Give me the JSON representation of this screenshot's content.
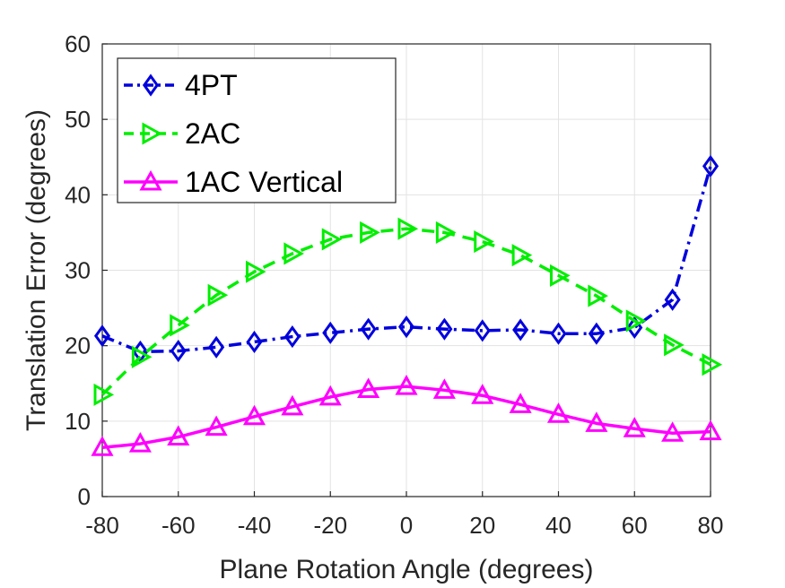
{
  "chart_data": {
    "type": "line",
    "xlabel": "Plane Rotation Angle (degrees)",
    "ylabel": "Translation Error (degrees)",
    "xlim": [
      -80,
      80
    ],
    "ylim": [
      0,
      60
    ],
    "x_ticks": [
      -80,
      -60,
      -40,
      -20,
      0,
      20,
      40,
      60,
      80
    ],
    "y_ticks": [
      0,
      10,
      20,
      30,
      40,
      50,
      60
    ],
    "grid": true,
    "legend_position": "top-left",
    "x": [
      -80,
      -70,
      -60,
      -50,
      -40,
      -30,
      -20,
      -10,
      0,
      10,
      20,
      30,
      40,
      50,
      60,
      70,
      80
    ],
    "series": [
      {
        "name": "4PT",
        "color": "#0000dd",
        "line_style": "dash-dot",
        "marker": "diamond",
        "values": [
          21.3,
          19.2,
          19.3,
          19.8,
          20.5,
          21.2,
          21.7,
          22.2,
          22.5,
          22.2,
          22.0,
          22.1,
          21.6,
          21.6,
          22.4,
          26.1,
          43.8
        ]
      },
      {
        "name": "2AC",
        "color": "#00ee00",
        "line_style": "dashed",
        "marker": "triangle-right",
        "values": [
          13.5,
          18.5,
          22.7,
          26.7,
          29.8,
          32.2,
          34.1,
          35.0,
          35.5,
          35.0,
          33.8,
          32.0,
          29.3,
          26.6,
          23.3,
          20.1,
          17.5
        ]
      },
      {
        "name": "1AC Vertical",
        "color": "#ff00ff",
        "line_style": "solid",
        "marker": "triangle-up",
        "values": [
          6.5,
          7.0,
          7.9,
          9.2,
          10.6,
          11.9,
          13.2,
          14.2,
          14.6,
          14.1,
          13.4,
          12.2,
          10.9,
          9.7,
          9.0,
          8.4,
          8.6
        ]
      }
    ]
  }
}
